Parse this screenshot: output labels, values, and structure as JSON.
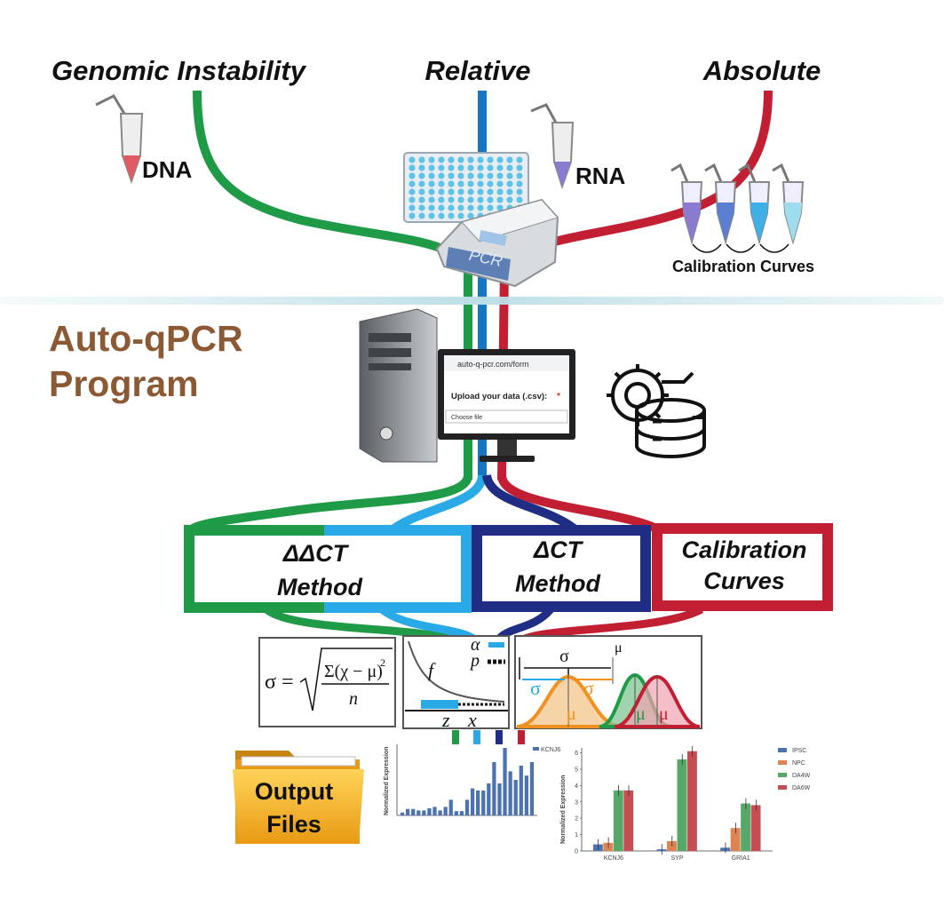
{
  "header": {
    "left": "Genomic Instability",
    "center": "Relative",
    "right": "Absolute"
  },
  "samples": {
    "dna": "DNA",
    "rna": "RNA",
    "calibration": "Calibration Curves"
  },
  "pcr": {
    "label": "PCR"
  },
  "program": {
    "line1": "Auto-qPCR",
    "line2": "Program"
  },
  "browser": {
    "url": "auto-q-pcr.com/form",
    "upload": "Upload your data (.csv):",
    "required": "*",
    "button": "Choose file"
  },
  "methods": {
    "ddct": {
      "line1": "ΔΔCT",
      "line2": "Method"
    },
    "dct": {
      "line1": "ΔCT",
      "line2": "Method"
    },
    "calibration": {
      "line1": "Calibration",
      "line2": "Curves"
    }
  },
  "stats": {
    "formula": {
      "lhs": "σ =",
      "numerator": "Σ(χ − μ)",
      "exponent": "2",
      "denominator": "n"
    },
    "test": {
      "alpha": "α",
      "p": "p",
      "f": "f",
      "z": "z",
      "x": "x"
    },
    "gauss": {
      "sigma": "σ",
      "sigma_left": "σ",
      "sigma_right": "σ",
      "mu_top": "μ",
      "mu_a": "μ",
      "mu_b": "μ",
      "mu_c": "μ"
    }
  },
  "output": {
    "line1": "Output",
    "line2": "Files"
  },
  "small_chart": {
    "type": "bar",
    "y_label": "Normalized Expression",
    "legend": "KCNJ6",
    "color": "#4c72b0",
    "ylim": [
      0,
      1
    ],
    "values": [
      0.04,
      0.09,
      0.09,
      0.07,
      0.07,
      0.1,
      0.12,
      0.07,
      0.12,
      0.22,
      0.06,
      0.06,
      0.22,
      0.38,
      0.35,
      0.35,
      0.45,
      0.75,
      0.45,
      0.95,
      0.62,
      0.5,
      0.7,
      0.56,
      0.75
    ]
  },
  "big_chart": {
    "type": "bar",
    "y_label": "Normalized Expression",
    "categories": [
      "KCNJ6",
      "SYP",
      "GRIA1"
    ],
    "series": [
      {
        "name": "IPSC",
        "color": "#4c72b0",
        "values": [
          0.4,
          0.1,
          0.2
        ]
      },
      {
        "name": "NPC",
        "color": "#dd8452",
        "values": [
          0.5,
          0.6,
          1.4
        ]
      },
      {
        "name": "DA4W",
        "color": "#55a868",
        "values": [
          3.7,
          5.6,
          2.9
        ]
      },
      {
        "name": "DA6W",
        "color": "#c44e52",
        "values": [
          3.7,
          6.1,
          2.8
        ]
      }
    ],
    "ylim": [
      0,
      6.3
    ],
    "yticks": [
      0,
      1,
      2,
      3,
      4,
      5,
      6
    ]
  }
}
